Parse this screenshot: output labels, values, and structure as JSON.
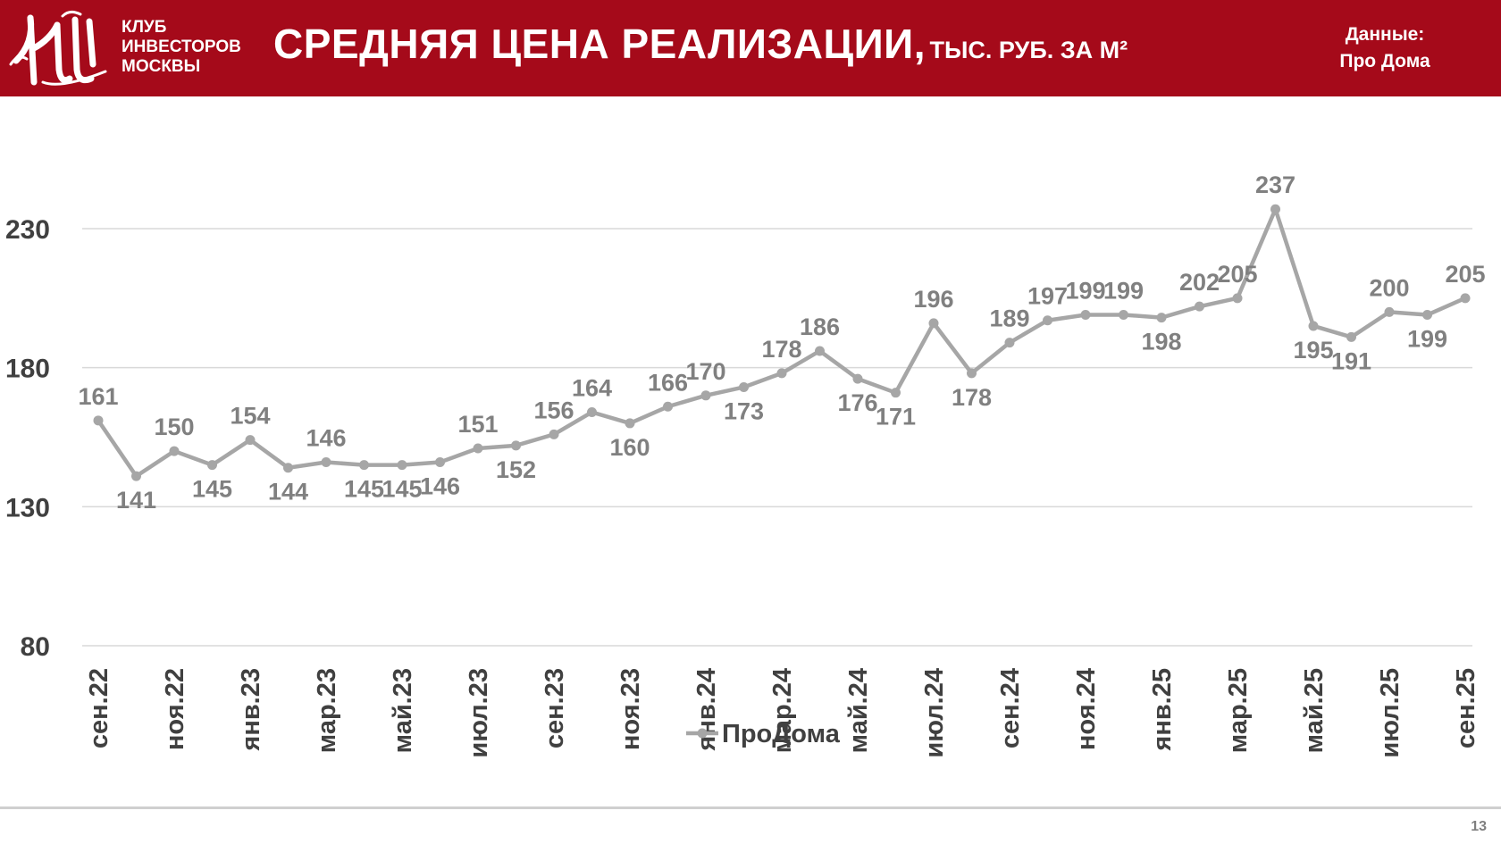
{
  "header": {
    "club_lines": [
      "КЛУБ",
      "ИНВЕСТОРОВ",
      "МОСКВЫ"
    ],
    "title_main": "СРЕДНЯЯ ЦЕНА РЕАЛИЗАЦИИ,",
    "title_sub": "ТЫС. РУБ. ЗА М²",
    "source_label": "Данные:",
    "source_value": "Про Дома",
    "brand_color": "#a50a1a",
    "logo_icon": "club-monogram-logo"
  },
  "footer": {
    "page_number": "13"
  },
  "chart_data": {
    "type": "line",
    "title": "",
    "xlabel": "",
    "ylabel": "",
    "ylim": [
      80,
      255
    ],
    "yticks": [
      80,
      130,
      180,
      230
    ],
    "grid": true,
    "legend_position": "bottom",
    "x": [
      "сен.22",
      "окт.22",
      "ноя.22",
      "дек.22",
      "янв.23",
      "фев.23",
      "мар.23",
      "апр.23",
      "май.23",
      "июн.23",
      "июл.23",
      "авг.23",
      "сен.23",
      "окт.23",
      "ноя.23",
      "дек.23",
      "янв.24",
      "фев.24",
      "мар.24",
      "апр.24",
      "май.24",
      "июн.24",
      "июл.24",
      "авг.24",
      "сен.24",
      "окт.24",
      "ноя.24",
      "дек.24",
      "янв.25",
      "фев.25",
      "мар.25",
      "апр.25",
      "май.25",
      "июн.25",
      "июл.25",
      "авг.25",
      "сен.25"
    ],
    "x_tick_labels": [
      "сен.22",
      "ноя.22",
      "янв.23",
      "мар.23",
      "май.23",
      "июл.23",
      "сен.23",
      "ноя.23",
      "янв.24",
      "мар.24",
      "май.24",
      "июл.24",
      "сен.24",
      "ноя.24",
      "янв.25",
      "мар.25",
      "май.25",
      "июл.25",
      "сен.25"
    ],
    "series": [
      {
        "name": "ПроДома",
        "color": "#a6a6a6",
        "values": [
          161,
          141,
          150,
          145,
          154,
          144,
          146,
          145,
          145,
          146,
          151,
          152,
          156,
          164,
          160,
          166,
          170,
          173,
          178,
          186,
          176,
          171,
          196,
          178,
          189,
          197,
          199,
          199,
          198,
          202,
          205,
          237,
          195,
          191,
          200,
          199,
          205
        ]
      }
    ]
  }
}
